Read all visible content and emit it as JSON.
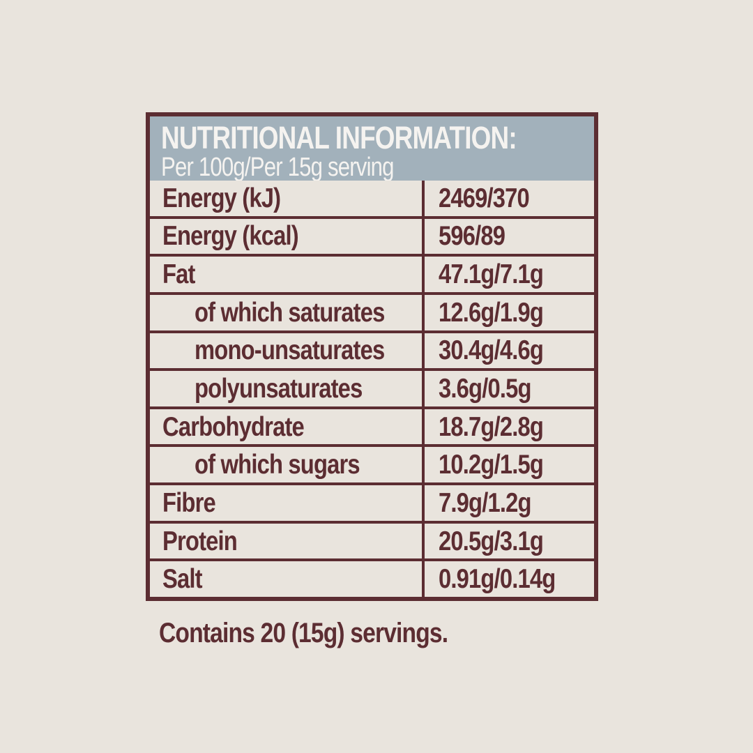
{
  "colors": {
    "page_background": "#e9e4dd",
    "maroon": "#5c2d32",
    "header_background": "#a2b1bb",
    "header_text": "#f5f3f0"
  },
  "label": {
    "title": "NUTRITIONAL INFORMATION:",
    "subtitle": "Per 100g/Per 15g serving",
    "rows": [
      {
        "label": "Energy (kJ)",
        "value": "2469/370",
        "indent": false
      },
      {
        "label": "Energy (kcal)",
        "value": "596/89",
        "indent": false
      },
      {
        "label": "Fat",
        "value": "47.1g/7.1g",
        "indent": false
      },
      {
        "label": "of which saturates",
        "value": "12.6g/1.9g",
        "indent": true
      },
      {
        "label": "mono-unsaturates",
        "value": "30.4g/4.6g",
        "indent": true
      },
      {
        "label": "polyunsaturates",
        "value": "3.6g/0.5g",
        "indent": true
      },
      {
        "label": "Carbohydrate",
        "value": "18.7g/2.8g",
        "indent": false
      },
      {
        "label": "of which sugars",
        "value": "10.2g/1.5g",
        "indent": true
      },
      {
        "label": "Fibre",
        "value": "7.9g/1.2g",
        "indent": false
      },
      {
        "label": "Protein",
        "value": "20.5g/3.1g",
        "indent": false
      },
      {
        "label": "Salt",
        "value": "0.91g/0.14g",
        "indent": false
      }
    ]
  },
  "footer": {
    "servings_note": "Contains 20 (15g) servings."
  }
}
